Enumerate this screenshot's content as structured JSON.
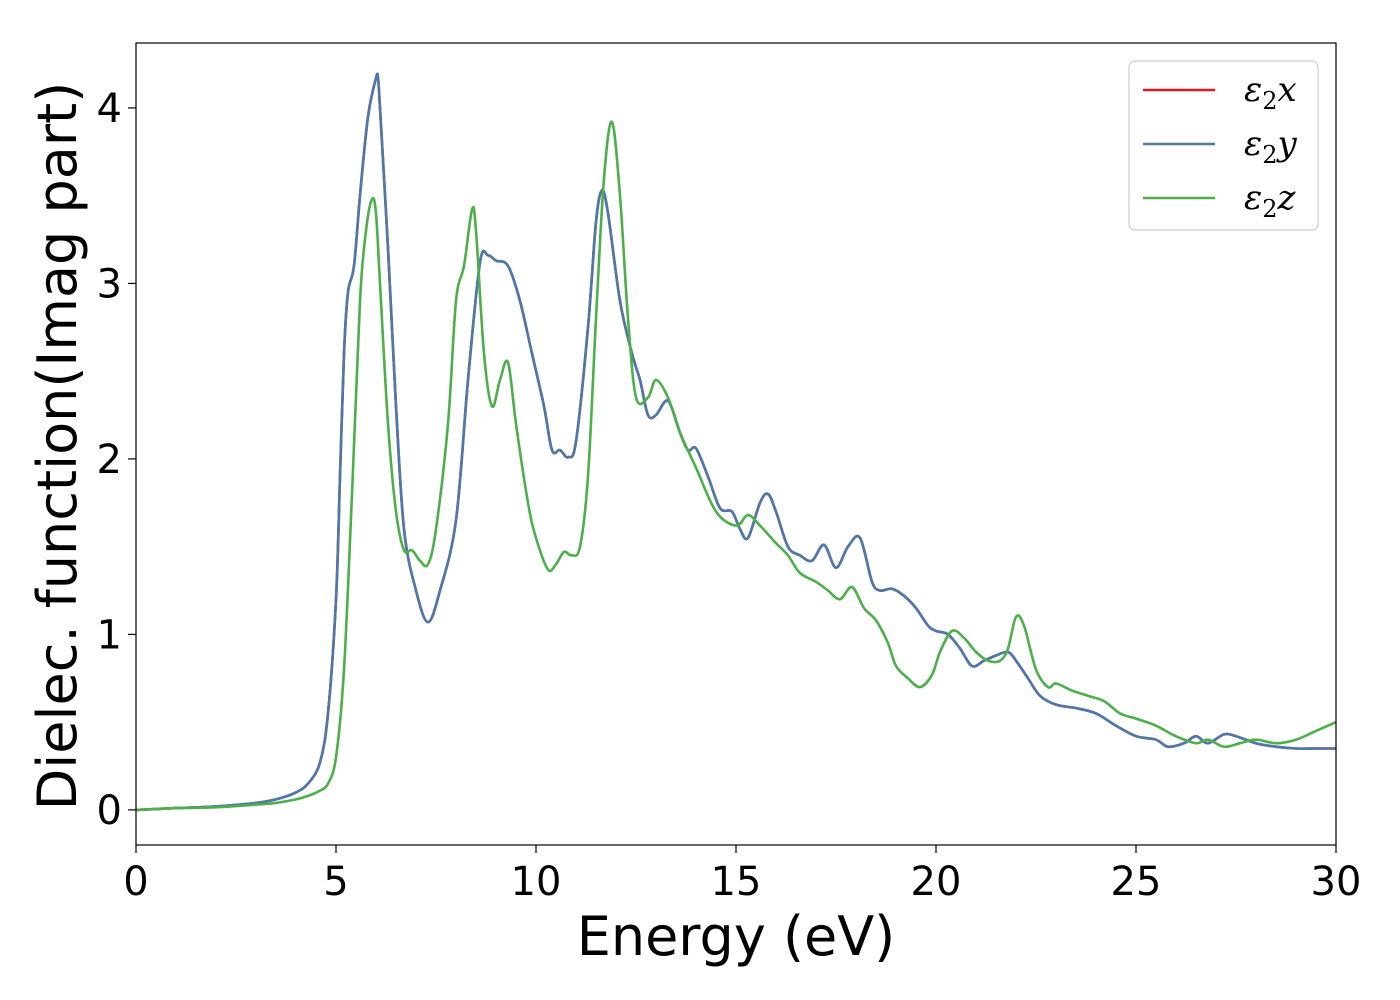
{
  "chart_data": {
    "type": "line",
    "xlabel": "Energy (eV)",
    "ylabel": "Dielec. function(Imag part)",
    "xlim": [
      0,
      30
    ],
    "ylim": [
      -0.2,
      4.37
    ],
    "xticks": [
      0,
      5,
      10,
      15,
      20,
      25,
      30
    ],
    "yticks": [
      0,
      1,
      2,
      3,
      4
    ],
    "grid": false,
    "legend_position": "top-right",
    "series": [
      {
        "name": "ε2x",
        "color": "#e41a1c",
        "x": [
          0,
          1,
          2,
          3,
          3.5,
          4,
          4.3,
          4.6,
          4.8,
          5.0,
          5.1,
          5.2,
          5.3,
          5.45,
          5.6,
          5.8,
          6.0,
          6.05,
          6.1,
          6.3,
          6.5,
          6.7,
          7.0,
          7.3,
          7.6,
          8.0,
          8.3,
          8.6,
          8.8,
          9.0,
          9.3,
          9.6,
          9.9,
          10.2,
          10.4,
          10.6,
          10.8,
          11.0,
          11.3,
          11.5,
          11.65,
          11.8,
          12.1,
          12.4,
          12.6,
          12.8,
          13.0,
          13.3,
          13.6,
          13.8,
          14.0,
          14.3,
          14.6,
          14.9,
          15.1,
          15.3,
          15.6,
          15.8,
          16.0,
          16.3,
          16.6,
          16.9,
          17.2,
          17.5,
          17.8,
          18.1,
          18.4,
          18.6,
          18.9,
          19.2,
          19.5,
          19.8,
          20.0,
          20.3,
          20.6,
          20.9,
          21.2,
          21.5,
          21.8,
          22.0,
          22.3,
          22.6,
          23.0,
          23.5,
          24.0,
          24.5,
          25.0,
          25.5,
          25.8,
          26.2,
          26.5,
          26.8,
          27.2,
          27.5,
          28.0,
          28.5,
          29.0,
          29.5,
          30.0
        ],
        "y": [
          0,
          0.01,
          0.02,
          0.04,
          0.06,
          0.1,
          0.15,
          0.27,
          0.55,
          1.2,
          1.9,
          2.6,
          2.95,
          3.1,
          3.5,
          3.95,
          4.17,
          4.17,
          4.0,
          3.2,
          2.3,
          1.6,
          1.25,
          1.07,
          1.25,
          1.65,
          2.45,
          3.12,
          3.16,
          3.13,
          3.1,
          2.9,
          2.6,
          2.3,
          2.05,
          2.05,
          2.01,
          2.1,
          2.75,
          3.35,
          3.53,
          3.4,
          2.9,
          2.6,
          2.45,
          2.25,
          2.25,
          2.33,
          2.15,
          2.05,
          2.06,
          1.9,
          1.72,
          1.7,
          1.6,
          1.55,
          1.75,
          1.8,
          1.7,
          1.5,
          1.45,
          1.42,
          1.51,
          1.38,
          1.5,
          1.55,
          1.3,
          1.25,
          1.26,
          1.22,
          1.15,
          1.05,
          1.02,
          1.0,
          0.92,
          0.82,
          0.85,
          0.88,
          0.9,
          0.85,
          0.75,
          0.65,
          0.6,
          0.58,
          0.55,
          0.48,
          0.42,
          0.4,
          0.36,
          0.38,
          0.42,
          0.38,
          0.43,
          0.42,
          0.38,
          0.36,
          0.35,
          0.35,
          0.35
        ]
      },
      {
        "name": "ε2y",
        "color": "#4a79ad",
        "x": [
          0,
          1,
          2,
          3,
          3.5,
          4,
          4.3,
          4.6,
          4.8,
          5.0,
          5.1,
          5.2,
          5.3,
          5.45,
          5.6,
          5.8,
          6.0,
          6.05,
          6.1,
          6.3,
          6.5,
          6.7,
          7.0,
          7.3,
          7.6,
          8.0,
          8.3,
          8.6,
          8.8,
          9.0,
          9.3,
          9.6,
          9.9,
          10.2,
          10.4,
          10.6,
          10.8,
          11.0,
          11.3,
          11.5,
          11.65,
          11.8,
          12.1,
          12.4,
          12.6,
          12.8,
          13.0,
          13.3,
          13.6,
          13.8,
          14.0,
          14.3,
          14.6,
          14.9,
          15.1,
          15.3,
          15.6,
          15.8,
          16.0,
          16.3,
          16.6,
          16.9,
          17.2,
          17.5,
          17.8,
          18.1,
          18.4,
          18.6,
          18.9,
          19.2,
          19.5,
          19.8,
          20.0,
          20.3,
          20.6,
          20.9,
          21.2,
          21.5,
          21.8,
          22.0,
          22.3,
          22.6,
          23.0,
          23.5,
          24.0,
          24.5,
          25.0,
          25.5,
          25.8,
          26.2,
          26.5,
          26.8,
          27.2,
          27.5,
          28.0,
          28.5,
          29.0,
          29.5,
          30.0
        ],
        "y": [
          0,
          0.01,
          0.02,
          0.04,
          0.06,
          0.1,
          0.15,
          0.27,
          0.55,
          1.2,
          1.9,
          2.6,
          2.95,
          3.1,
          3.5,
          3.95,
          4.17,
          4.17,
          4.0,
          3.2,
          2.3,
          1.6,
          1.25,
          1.07,
          1.25,
          1.65,
          2.45,
          3.12,
          3.16,
          3.13,
          3.1,
          2.9,
          2.6,
          2.3,
          2.05,
          2.05,
          2.01,
          2.1,
          2.75,
          3.35,
          3.53,
          3.4,
          2.9,
          2.6,
          2.45,
          2.25,
          2.25,
          2.33,
          2.15,
          2.05,
          2.06,
          1.9,
          1.72,
          1.7,
          1.6,
          1.55,
          1.75,
          1.8,
          1.7,
          1.5,
          1.45,
          1.42,
          1.51,
          1.38,
          1.5,
          1.55,
          1.3,
          1.25,
          1.26,
          1.22,
          1.15,
          1.05,
          1.02,
          1.0,
          0.92,
          0.82,
          0.85,
          0.88,
          0.9,
          0.85,
          0.75,
          0.65,
          0.6,
          0.58,
          0.55,
          0.48,
          0.42,
          0.4,
          0.36,
          0.38,
          0.42,
          0.38,
          0.43,
          0.42,
          0.38,
          0.36,
          0.35,
          0.35,
          0.35
        ]
      },
      {
        "name": "ε2z",
        "color": "#4daf4a",
        "x": [
          0,
          1,
          2,
          3,
          3.5,
          4,
          4.3,
          4.6,
          4.8,
          5.0,
          5.2,
          5.4,
          5.6,
          5.75,
          5.9,
          6.0,
          6.1,
          6.3,
          6.5,
          6.7,
          6.9,
          7.1,
          7.3,
          7.5,
          7.8,
          8.0,
          8.2,
          8.4,
          8.5,
          8.7,
          8.9,
          9.1,
          9.3,
          9.5,
          9.8,
          10.0,
          10.3,
          10.5,
          10.7,
          10.9,
          11.1,
          11.3,
          11.5,
          11.7,
          11.9,
          12.1,
          12.3,
          12.5,
          12.8,
          13.0,
          13.3,
          13.6,
          14.0,
          14.5,
          15.0,
          15.3,
          15.6,
          16.0,
          16.3,
          16.6,
          17.0,
          17.3,
          17.6,
          17.9,
          18.2,
          18.5,
          18.8,
          19.0,
          19.3,
          19.6,
          19.9,
          20.1,
          20.4,
          20.7,
          21.0,
          21.3,
          21.6,
          21.8,
          22.0,
          22.2,
          22.5,
          22.8,
          23.0,
          23.4,
          23.8,
          24.2,
          24.6,
          25.0,
          25.5,
          26.0,
          26.5,
          26.8,
          27.2,
          27.6,
          28.0,
          28.5,
          29.0,
          29.5,
          30.0
        ],
        "y": [
          0,
          0.01,
          0.015,
          0.03,
          0.04,
          0.06,
          0.08,
          0.11,
          0.15,
          0.3,
          0.8,
          1.8,
          2.9,
          3.3,
          3.48,
          3.4,
          3.0,
          2.2,
          1.7,
          1.48,
          1.48,
          1.42,
          1.4,
          1.6,
          2.2,
          2.9,
          3.1,
          3.42,
          3.3,
          2.6,
          2.3,
          2.45,
          2.55,
          2.2,
          1.75,
          1.55,
          1.37,
          1.4,
          1.47,
          1.45,
          1.5,
          1.9,
          2.8,
          3.6,
          3.92,
          3.5,
          2.8,
          2.35,
          2.35,
          2.45,
          2.35,
          2.15,
          1.95,
          1.7,
          1.62,
          1.68,
          1.62,
          1.52,
          1.45,
          1.35,
          1.3,
          1.25,
          1.2,
          1.27,
          1.15,
          1.08,
          0.95,
          0.82,
          0.75,
          0.7,
          0.77,
          0.9,
          1.02,
          0.98,
          0.9,
          0.85,
          0.85,
          0.92,
          1.1,
          1.05,
          0.8,
          0.7,
          0.72,
          0.68,
          0.65,
          0.62,
          0.55,
          0.52,
          0.48,
          0.42,
          0.38,
          0.4,
          0.36,
          0.38,
          0.4,
          0.38,
          0.4,
          0.45,
          0.5
        ]
      }
    ]
  }
}
